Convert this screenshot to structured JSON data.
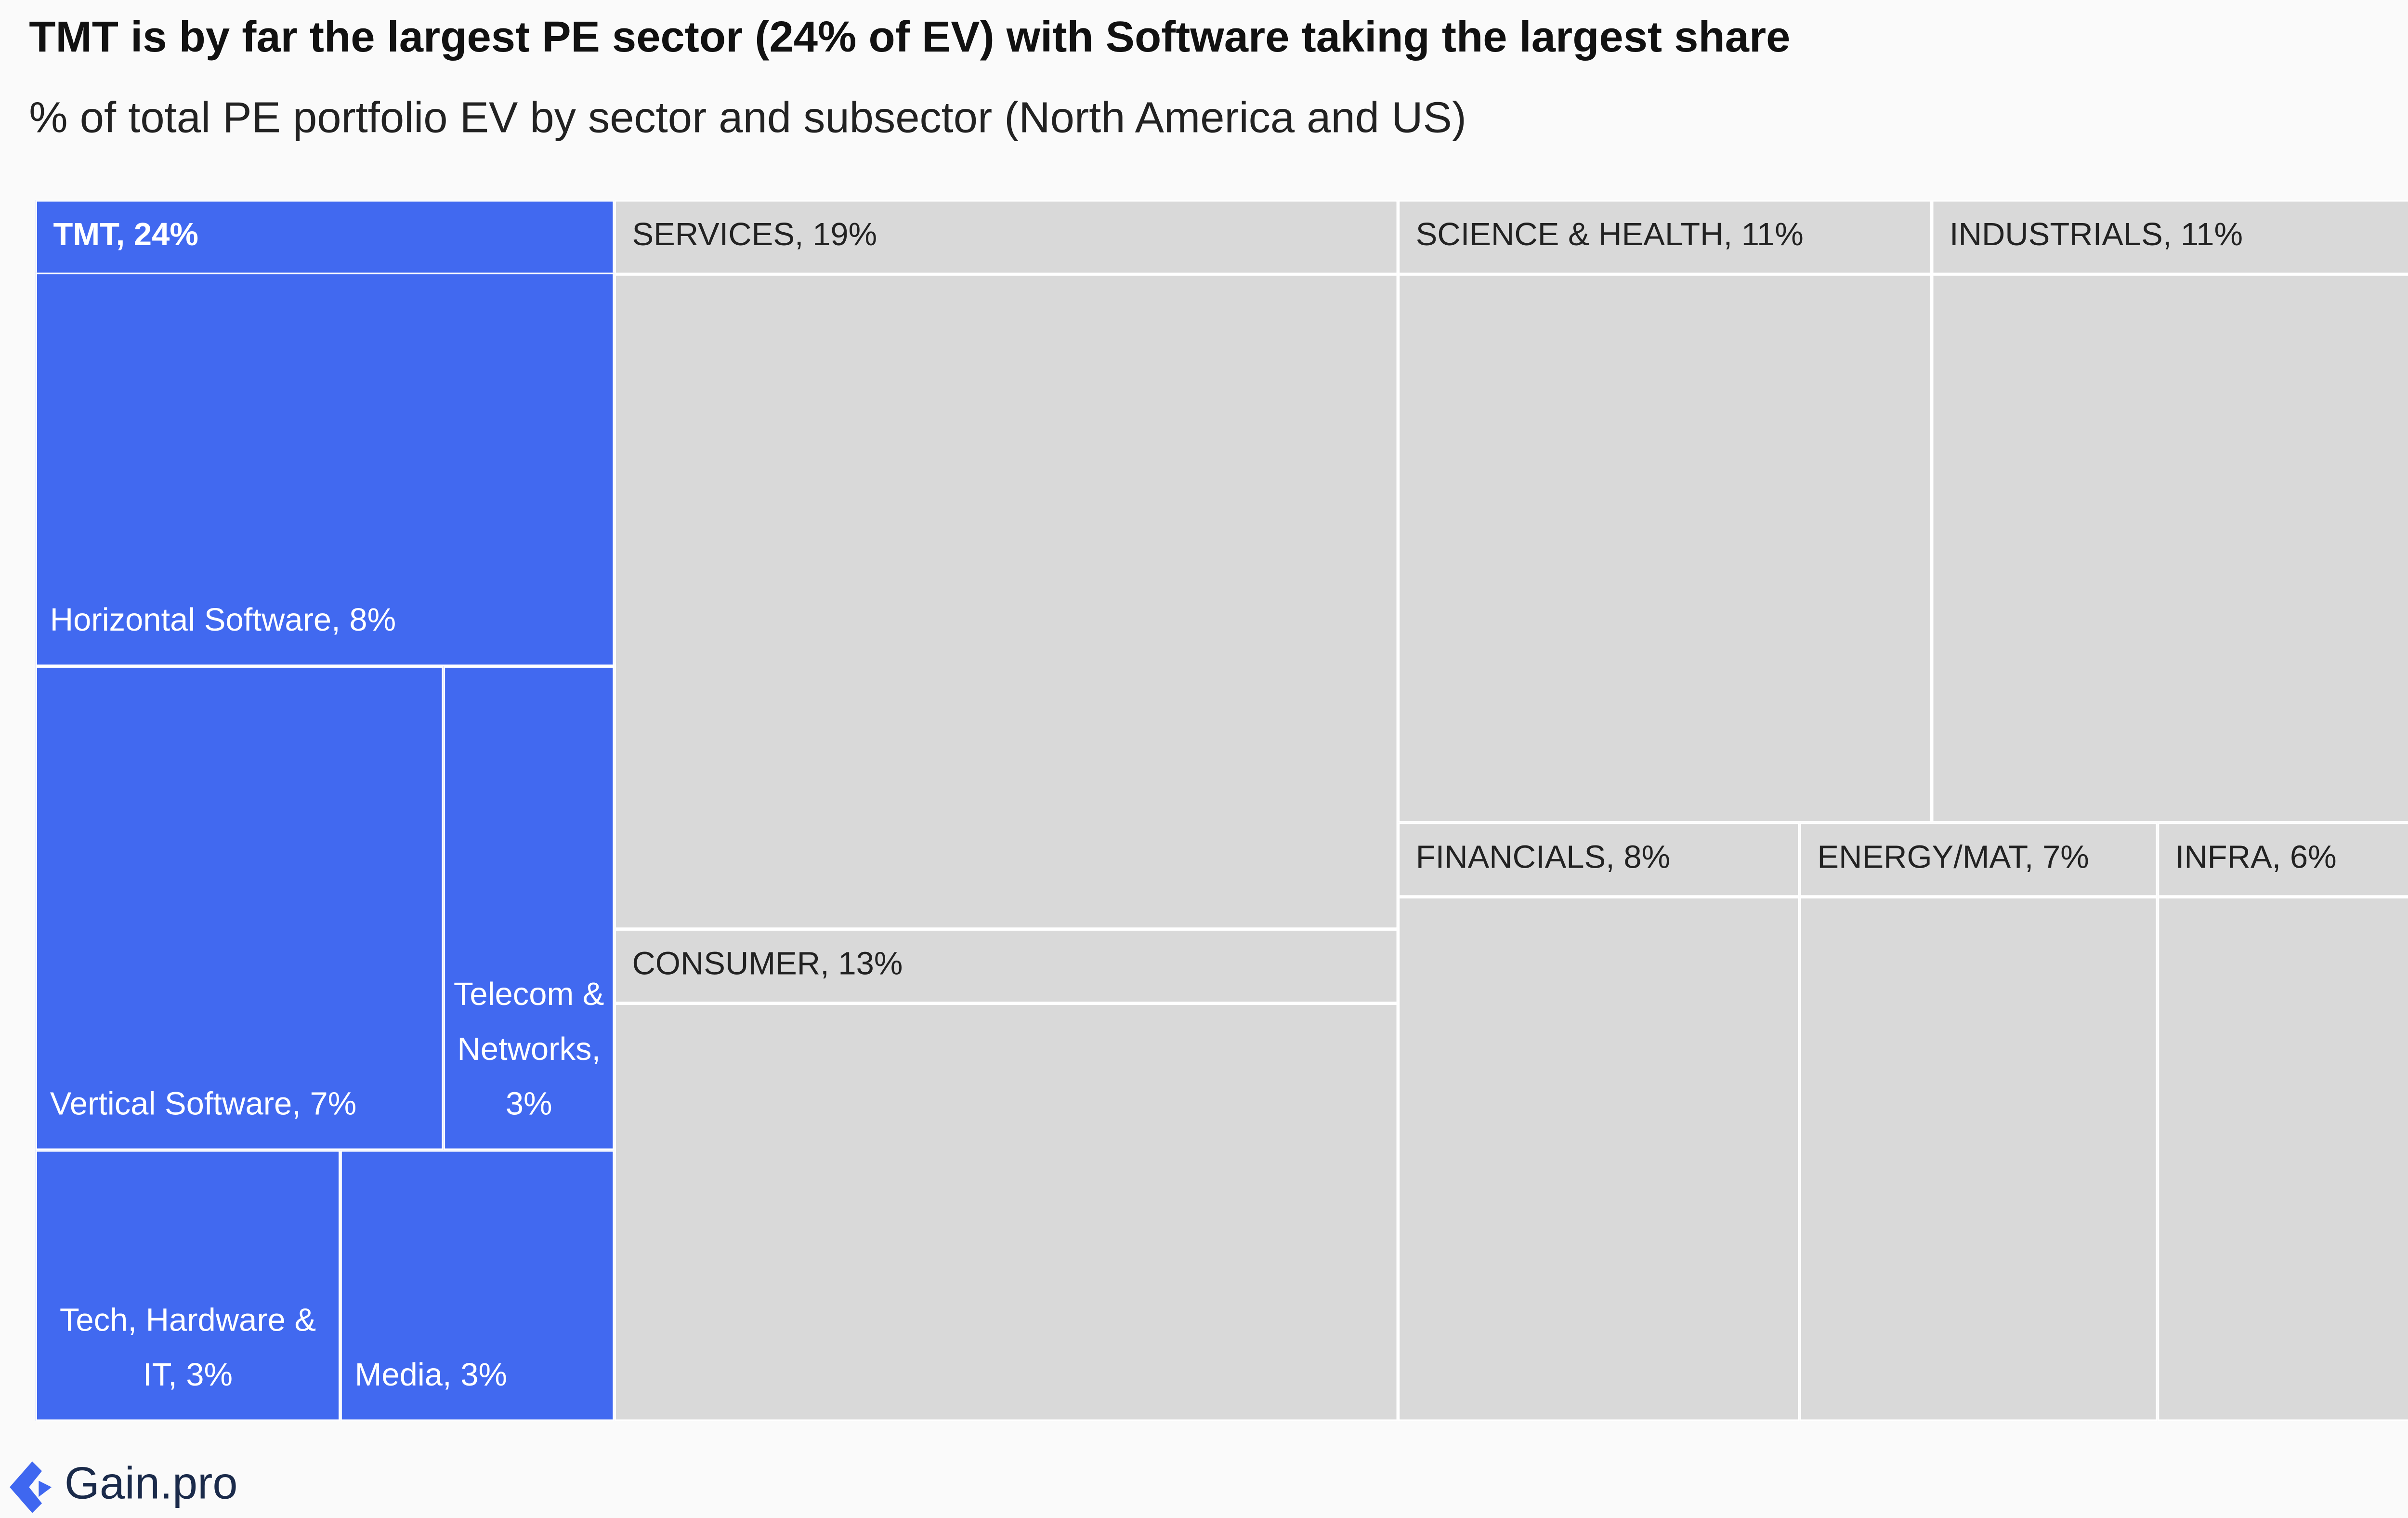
{
  "chart_data": {
    "type": "treemap",
    "title": "TMT is by far the largest PE sector (24% of EV) with Software taking the largest share",
    "subtitle": "% of total PE portfolio EV  by sector and subsector (North America and US)",
    "highlight_color": "#4169f0",
    "color": "#d9d9d9",
    "nodes": [
      {
        "label": "TMT, 24%",
        "value": 24,
        "highlight": true,
        "children": [
          {
            "label": "Horizontal Software, 8%",
            "value": 8
          },
          {
            "label": "Vertical Software, 7%",
            "value": 7
          },
          {
            "label": "Telecom & Networks, 3%",
            "value": 3
          },
          {
            "label": "Tech, Hardware & IT, 3%",
            "value": 3
          },
          {
            "label": "Media, 3%",
            "value": 3
          }
        ]
      },
      {
        "label": "SERVICES, 19%",
        "value": 19
      },
      {
        "label": "CONSUMER, 13%",
        "value": 13
      },
      {
        "label": "SCIENCE & HEALTH, 11%",
        "value": 11
      },
      {
        "label": "INDUSTRIALS, 11%",
        "value": 11
      },
      {
        "label": "FINANCIALS, 8%",
        "value": 8
      },
      {
        "label": "ENERGY/MAT, 7%",
        "value": 7
      },
      {
        "label": "INFRA, 6%",
        "value": 6
      }
    ]
  },
  "footer": "Gain.pro"
}
